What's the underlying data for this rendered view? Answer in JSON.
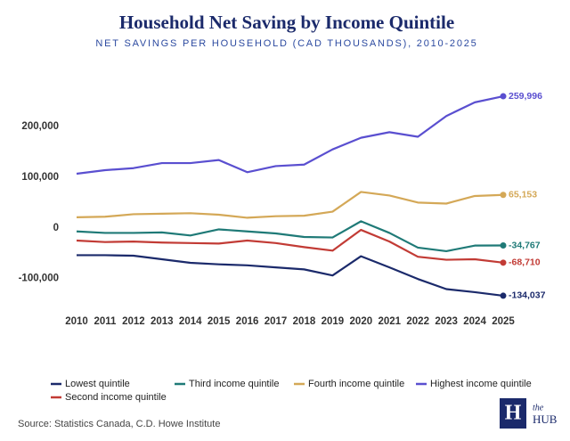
{
  "chart_data": {
    "type": "line",
    "title": "Household Net Saving by Income Quintile",
    "subtitle": "NET SAVINGS PER HOUSEHOLD (CAD THOUSANDS), 2010-2025",
    "x": [
      2010,
      2011,
      2012,
      2013,
      2014,
      2015,
      2016,
      2017,
      2018,
      2019,
      2020,
      2021,
      2022,
      2023,
      2024,
      2025
    ],
    "xlim": [
      2010,
      2025
    ],
    "xticks": [
      2010,
      2011,
      2012,
      2013,
      2014,
      2015,
      2016,
      2017,
      2018,
      2019,
      2020,
      2021,
      2022,
      2023,
      2024,
      2025
    ],
    "ylim": [
      -150000,
      290000
    ],
    "yticks": [
      {
        "value": -100000,
        "label": "-100,000"
      },
      0,
      {
        "value": 100000,
        "label": "100,000"
      },
      {
        "value": 200000,
        "label": "200,000"
      }
    ],
    "grid": false,
    "series": [
      {
        "name": "Lowest quintile",
        "color": "#1b2a6b",
        "values": [
          -54000,
          -54000,
          -55000,
          -62000,
          -69000,
          -72000,
          -74000,
          -78000,
          -82000,
          -94000,
          -56000,
          -78000,
          -101000,
          -121000,
          -127000,
          -134037
        ],
        "value_labels": [
          null,
          null,
          null,
          null,
          null,
          null,
          null,
          null,
          null,
          null,
          null,
          null,
          null,
          null,
          null,
          "-134,037"
        ]
      },
      {
        "name": "Second income quintile",
        "color": "#c23b35",
        "values": [
          -25000,
          -28000,
          -27000,
          -29000,
          -30000,
          -31000,
          -25000,
          -30000,
          -38000,
          -45000,
          -4000,
          -27000,
          -57000,
          -63000,
          -62000,
          -68710
        ],
        "value_labels": [
          null,
          null,
          null,
          null,
          null,
          null,
          null,
          null,
          null,
          null,
          null,
          null,
          null,
          null,
          null,
          "-68,710"
        ]
      },
      {
        "name": "Third income quintile",
        "color": "#1f7a77",
        "values": [
          -7000,
          -10000,
          -10000,
          -9000,
          -15000,
          -3000,
          -7000,
          -11000,
          -18000,
          -19000,
          13000,
          -10000,
          -39000,
          -46000,
          -35000,
          -34767
        ],
        "value_labels": [
          null,
          null,
          null,
          null,
          null,
          null,
          null,
          null,
          null,
          null,
          null,
          null,
          null,
          null,
          null,
          "-34,767"
        ]
      },
      {
        "name": "Fourth income quintile",
        "color": "#d4a857",
        "values": [
          21000,
          22000,
          27000,
          28000,
          29000,
          26000,
          20000,
          23000,
          24000,
          32000,
          71000,
          64000,
          50000,
          48000,
          63000,
          65153
        ],
        "value_labels": [
          null,
          null,
          null,
          null,
          null,
          null,
          null,
          null,
          null,
          null,
          null,
          null,
          null,
          null,
          null,
          "65,153"
        ]
      },
      {
        "name": "Highest income quintile",
        "color": "#5a4fd0",
        "values": [
          107000,
          114000,
          118000,
          128000,
          128000,
          134000,
          110000,
          122000,
          125000,
          155000,
          178000,
          189000,
          180000,
          221000,
          248000,
          259996
        ],
        "value_labels": [
          null,
          null,
          null,
          null,
          null,
          null,
          null,
          null,
          null,
          null,
          null,
          null,
          null,
          null,
          null,
          "259,996"
        ]
      }
    ],
    "source": "Source: Statistics Canada, C.D. Howe Institute",
    "logo": {
      "letter": "H",
      "line1": "the",
      "line2": "HUB"
    }
  }
}
